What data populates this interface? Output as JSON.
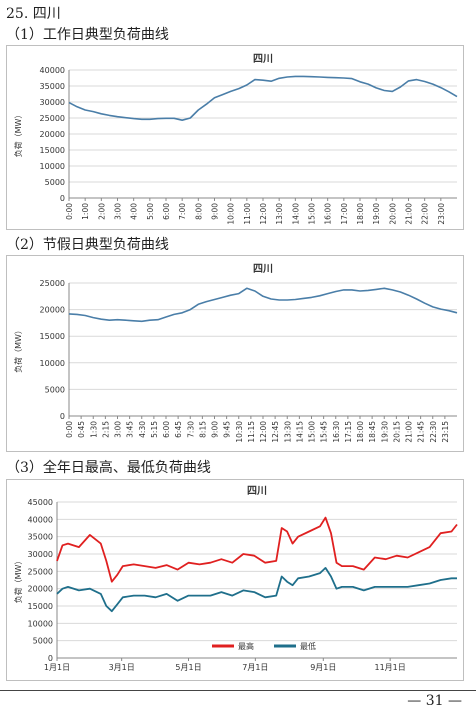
{
  "section_title": "25. 四川",
  "footer": {
    "page_number": "— 31 —"
  },
  "chart_data": [
    {
      "type": "line",
      "heading": "（1）工作日典型负荷曲线",
      "title": "四川",
      "ylabel": "负荷（MW）",
      "xlabel": "",
      "ylim": [
        0,
        40000
      ],
      "yticks": [
        "0",
        "5000",
        "10000",
        "15000",
        "20000",
        "25000",
        "30000",
        "35000",
        "40000"
      ],
      "grid": true,
      "categories": [
        "0:00",
        "1:00",
        "2:00",
        "3:00",
        "4:00",
        "5:00",
        "6:00",
        "7:00",
        "8:00",
        "9:00",
        "10:00",
        "11:00",
        "12:00",
        "13:00",
        "14:00",
        "15:00",
        "16:00",
        "17:00",
        "18:00",
        "19:00",
        "20:00",
        "21:00",
        "22:00",
        "23:00"
      ],
      "series": [
        {
          "color": "#4a7ea8",
          "x": [
            0,
            0.5,
            1,
            1.5,
            2,
            2.5,
            3,
            3.5,
            4,
            4.5,
            5,
            5.5,
            6,
            6.5,
            7,
            7.5,
            8,
            8.5,
            9,
            9.5,
            10,
            10.5,
            11,
            11.5,
            12,
            12.5,
            13,
            13.5,
            14,
            14.5,
            15,
            15.5,
            16,
            16.5,
            17,
            17.5,
            18,
            18.5,
            19,
            19.5,
            20,
            20.5,
            21,
            21.5,
            22,
            22.5,
            23,
            23.5,
            24
          ],
          "values": [
            29800,
            28500,
            27500,
            27000,
            26300,
            25800,
            25400,
            25100,
            24800,
            24600,
            24600,
            24800,
            24900,
            24900,
            24300,
            25000,
            27500,
            29300,
            31300,
            32300,
            33300,
            34200,
            35300,
            37000,
            36800,
            36500,
            37400,
            37800,
            38000,
            38000,
            37900,
            37800,
            37700,
            37600,
            37500,
            37300,
            36300,
            35600,
            34400,
            33600,
            33300,
            34700,
            36600,
            37000,
            36400,
            35600,
            34500,
            33200,
            31700
          ]
        }
      ]
    },
    {
      "type": "line",
      "heading": "（2）节假日典型负荷曲线",
      "title": "四川",
      "ylabel": "负荷（MW）",
      "xlabel": "",
      "ylim": [
        0,
        25000
      ],
      "yticks": [
        "0",
        "5000",
        "10000",
        "15000",
        "20000",
        "25000"
      ],
      "grid": true,
      "categories": [
        "0:00",
        "0:45",
        "1:30",
        "2:15",
        "3:00",
        "3:45",
        "4:30",
        "5:15",
        "6:00",
        "6:45",
        "7:30",
        "8:15",
        "9:00",
        "9:45",
        "10:30",
        "11:15",
        "12:00",
        "12:45",
        "13:30",
        "14:15",
        "15:00",
        "15:45",
        "16:30",
        "17:15",
        "18:00",
        "18:45",
        "19:30",
        "20:15",
        "21:00",
        "21:45",
        "22:30",
        "23:15"
      ],
      "series": [
        {
          "color": "#4a7ea8",
          "x": [
            0,
            0.5,
            1,
            1.5,
            2,
            2.5,
            3,
            3.5,
            4,
            4.5,
            5,
            5.5,
            6,
            6.5,
            7,
            7.5,
            8,
            8.5,
            9,
            9.5,
            10,
            10.5,
            11,
            11.5,
            12,
            12.5,
            13,
            13.5,
            14,
            14.5,
            15,
            15.5,
            16,
            16.5,
            17,
            17.5,
            18,
            18.5,
            19,
            19.5,
            20,
            20.5,
            21,
            21.5,
            22,
            22.5,
            23,
            23.5,
            24
          ],
          "values": [
            19200,
            19100,
            18900,
            18500,
            18200,
            18000,
            18100,
            18000,
            17900,
            17800,
            18000,
            18100,
            18600,
            19100,
            19400,
            20000,
            21000,
            21500,
            21900,
            22300,
            22700,
            23000,
            24000,
            23500,
            22500,
            22000,
            21800,
            21800,
            21900,
            22100,
            22300,
            22600,
            23000,
            23400,
            23700,
            23700,
            23500,
            23600,
            23800,
            24000,
            23700,
            23300,
            22700,
            22000,
            21200,
            20500,
            20100,
            19800,
            19400
          ]
        }
      ]
    },
    {
      "type": "line",
      "heading": "（3）全年日最高、最低负荷曲线",
      "title": "四川",
      "ylabel": "负荷（MW）",
      "xlabel": "",
      "ylim": [
        0,
        45000
      ],
      "yticks": [
        "0",
        "5000",
        "10000",
        "15000",
        "20000",
        "25000",
        "30000",
        "35000",
        "40000",
        "45000"
      ],
      "grid": true,
      "categories": [
        "1月1日",
        "3月1日",
        "5月1日",
        "7月1日",
        "9月1日",
        "11月1日"
      ],
      "category_positions": [
        0,
        59,
        120,
        181,
        243,
        304
      ],
      "x_range": [
        0,
        365
      ],
      "legend": "bottom-center",
      "series": [
        {
          "name": "最高",
          "color": "#e02020",
          "x": [
            0,
            5,
            10,
            20,
            30,
            40,
            45,
            50,
            55,
            60,
            70,
            80,
            90,
            100,
            110,
            120,
            130,
            140,
            150,
            160,
            170,
            180,
            190,
            200,
            205,
            210,
            215,
            220,
            230,
            240,
            245,
            250,
            255,
            260,
            270,
            280,
            290,
            300,
            310,
            320,
            330,
            340,
            350,
            360,
            365
          ],
          "values": [
            28000,
            32500,
            33000,
            32000,
            35500,
            33000,
            28000,
            22000,
            24000,
            26500,
            27000,
            26500,
            26000,
            26800,
            25500,
            27500,
            27000,
            27500,
            28500,
            27500,
            30000,
            29500,
            27500,
            28000,
            37500,
            36500,
            33000,
            35000,
            36500,
            38000,
            40500,
            36000,
            27500,
            26500,
            26500,
            25500,
            29000,
            28500,
            29500,
            29000,
            30500,
            32000,
            36000,
            36500,
            38500
          ]
        },
        {
          "name": "最低",
          "color": "#1f6f8b",
          "x": [
            0,
            5,
            10,
            20,
            30,
            40,
            45,
            50,
            55,
            60,
            70,
            80,
            90,
            100,
            110,
            120,
            130,
            140,
            150,
            160,
            170,
            180,
            190,
            200,
            205,
            210,
            215,
            220,
            230,
            240,
            245,
            250,
            255,
            260,
            270,
            280,
            290,
            300,
            310,
            320,
            330,
            340,
            350,
            360,
            365
          ],
          "values": [
            18500,
            20000,
            20500,
            19500,
            20000,
            18500,
            15000,
            13500,
            15500,
            17500,
            18000,
            18000,
            17500,
            18500,
            16500,
            18000,
            18000,
            18000,
            19000,
            18000,
            19500,
            19000,
            17500,
            18000,
            23500,
            22000,
            21000,
            23000,
            23500,
            24500,
            26000,
            23500,
            20000,
            20500,
            20500,
            19500,
            20500,
            20500,
            20500,
            20500,
            21000,
            21500,
            22500,
            23000,
            23000
          ]
        }
      ]
    }
  ]
}
